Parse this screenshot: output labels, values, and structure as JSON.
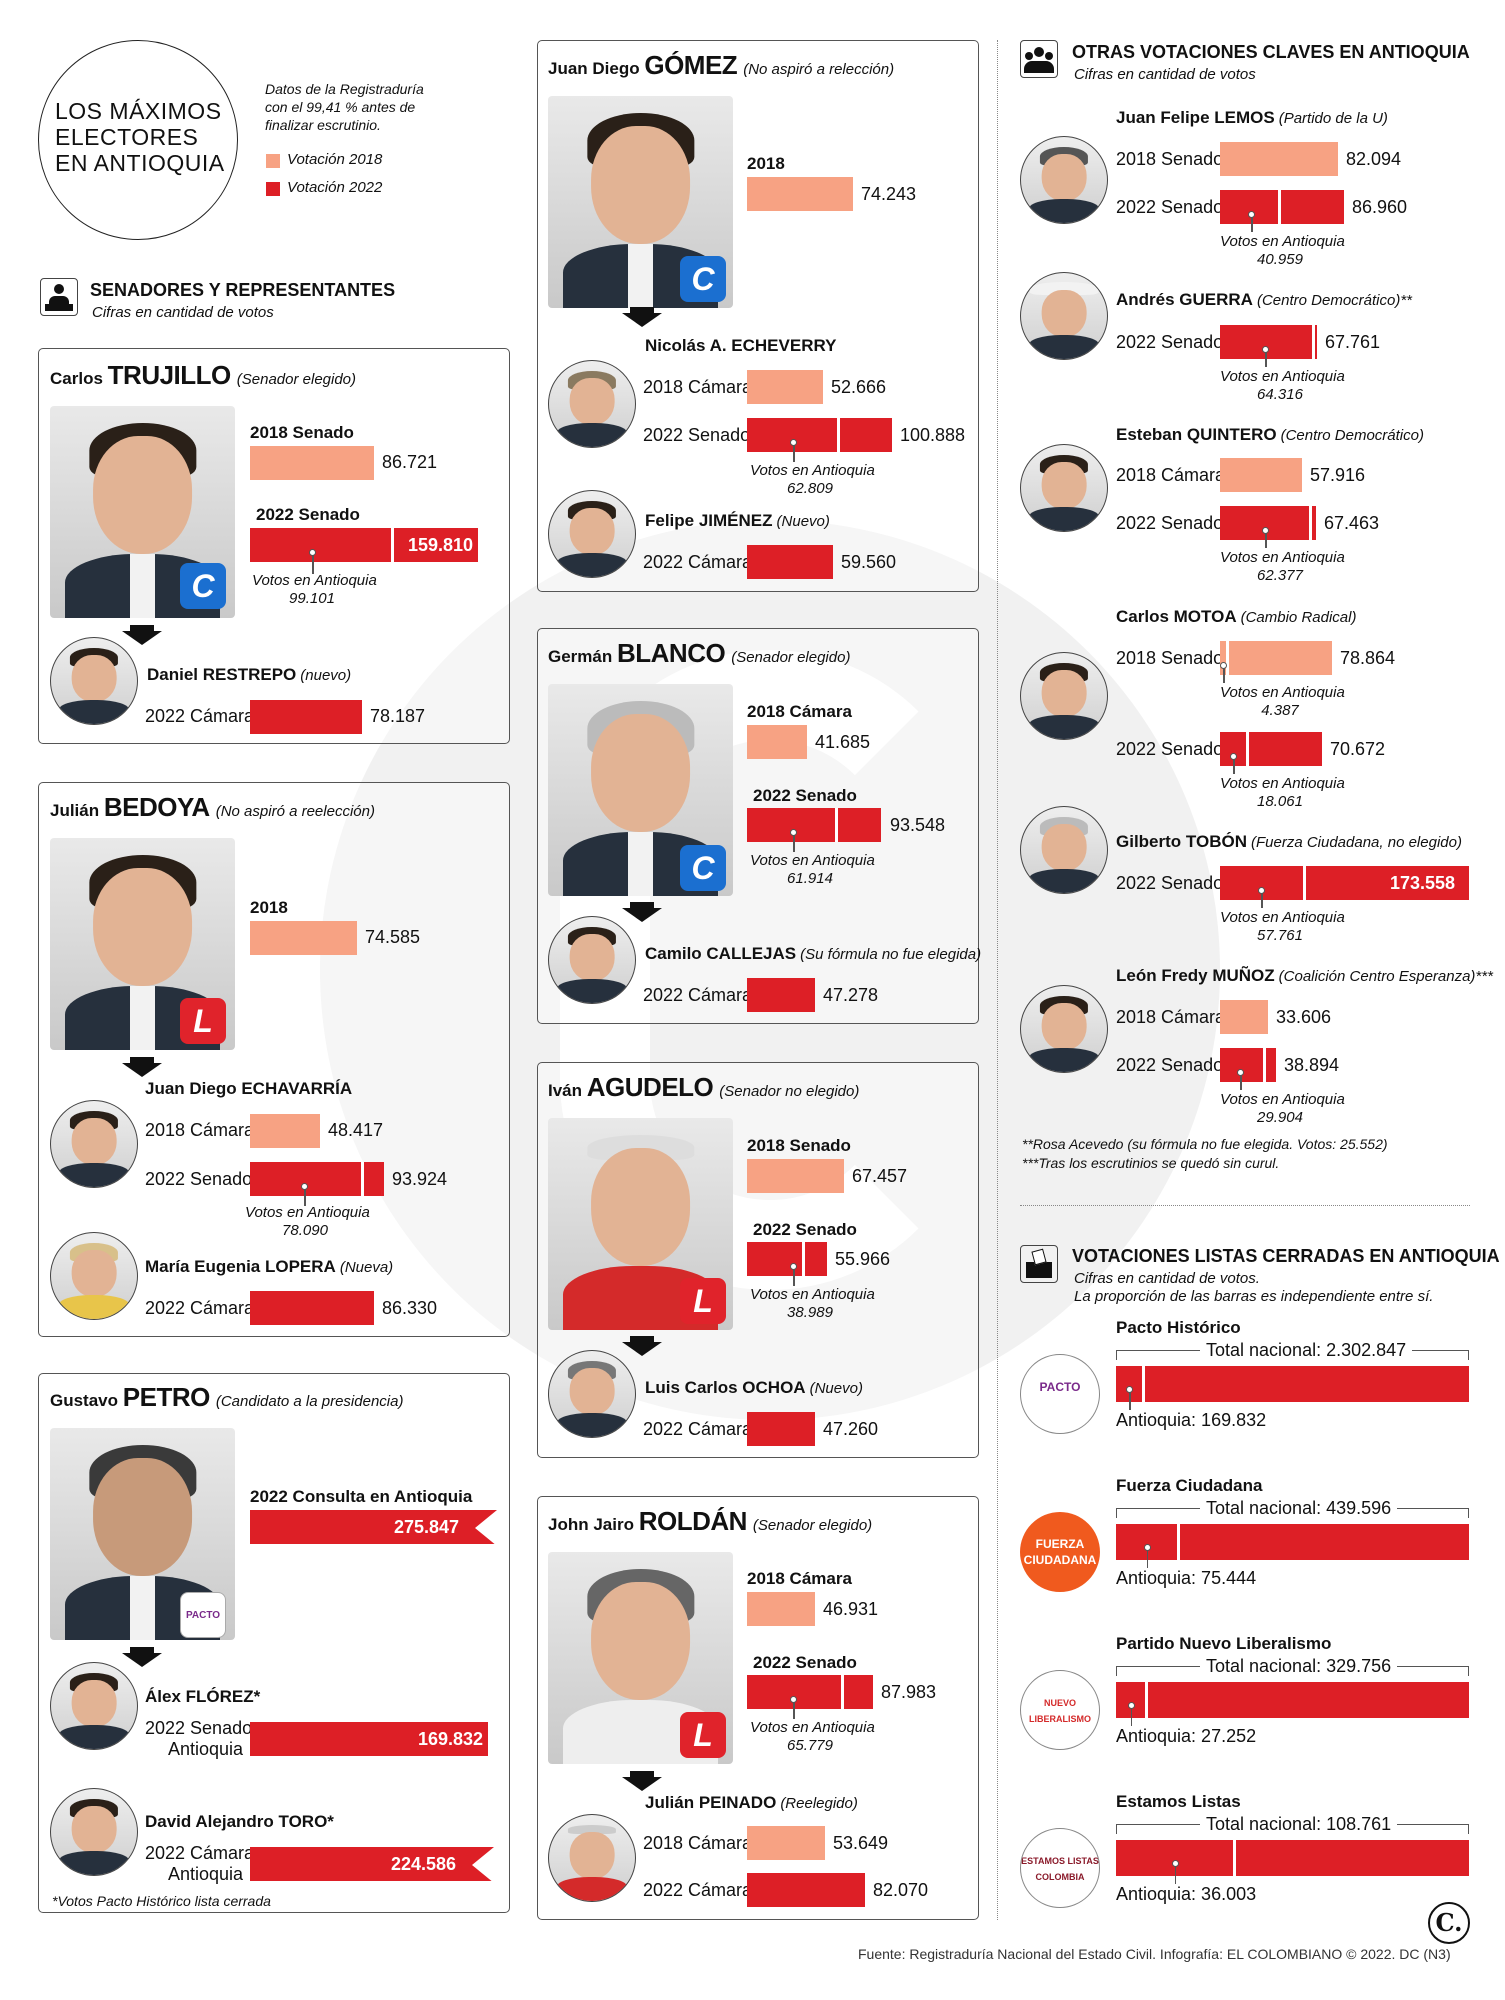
{
  "title": "LOS MÁXIMOS ELECTORES EN ANTIOQUIA",
  "title_lines": [
    "LOS MÁXIMOS",
    "ELECTORES",
    "EN ANTIOQUIA"
  ],
  "intro": [
    "Datos de la Registraduría",
    "con el 99,41 % antes de",
    "finalizar escrutinio."
  ],
  "legend": {
    "y2018": "Votación 2018",
    "y2022": "Votación 2022",
    "color2018": "#f7a283",
    "color2022": "#dd1f26"
  },
  "section_senadores": {
    "title": "SENADORES Y REPRESENTANTES",
    "subtitle": "Cifras en cantidad de votos",
    "icon": "podium-icon"
  },
  "section_otras": {
    "title": "OTRAS VOTACIONES CLAVES EN ANTIOQUIA",
    "subtitle": "Cifras en cantidad de votos",
    "icon": "people-icon"
  },
  "section_listas": {
    "title": "VOTACIONES LISTAS CERRADAS EN ANTIOQUIA",
    "subtitle1": "Cifras en cantidad de votos.",
    "subtitle2": "La proporción de las barras es independiente entre sí.",
    "icon": "ballot-box-icon"
  },
  "votos_ant": "Votos en Antioquia",
  "trujillo": {
    "first": "Carlos",
    "sur": "TRUJILLO",
    "note": "(Senador elegido)",
    "l1": "2018 Senado",
    "v1": "86.721",
    "l2": "2022 Senado",
    "v2": "159.810",
    "ant": "99.101",
    "party": "C",
    "sub": {
      "name": "Daniel RESTREPO",
      "note": "(nuevo)",
      "l1": "2022 Cámara",
      "v1": "78.187"
    }
  },
  "bedoya": {
    "first": "Julián",
    "sur": "BEDOYA",
    "note": "(No aspiró a reelección)",
    "l1": "2018",
    "v1": "74.585",
    "party": "L",
    "sub1": {
      "name": "Juan Diego ECHAVARRÍA",
      "l1": "2018 Cámara",
      "v1": "48.417",
      "l2": "2022 Senado",
      "v2": "93.924",
      "ant": "78.090"
    },
    "sub2": {
      "name": "María Eugenia LOPERA",
      "note": "(Nueva)",
      "l1": "2022 Cámara",
      "v1": "86.330"
    }
  },
  "petro": {
    "first": "Gustavo",
    "sur": "PETRO",
    "note": "(Candidato a la presidencia)",
    "l1": "2022 Consulta en Antioquia",
    "v1": "275.847",
    "party": "PACTO",
    "sub1": {
      "name": "Álex FLÓREZ*",
      "l1a": "2022 Senado",
      "l1b": "Antioquia",
      "v1": "169.832"
    },
    "sub2": {
      "name": "David Alejandro TORO*",
      "l1a": "2022 Cámara",
      "l1b": "Antioquia",
      "v1": "224.586"
    },
    "footnote": "*Votos Pacto Histórico lista cerrada"
  },
  "gomez": {
    "first": "Juan Diego",
    "sur": "GÓMEZ",
    "note": "(No aspiró a relección)",
    "l1": "2018",
    "v1": "74.243",
    "party": "C",
    "sub1": {
      "name": "Nicolás A. ECHEVERRY",
      "l1": "2018 Cámara",
      "v1": "52.666",
      "l2": "2022 Senado",
      "v2": "100.888",
      "ant": "62.809"
    },
    "sub2": {
      "name": "Felipe JIMÉNEZ",
      "note": "(Nuevo)",
      "l1": "2022 Cámara",
      "v1": "59.560"
    }
  },
  "blanco": {
    "first": "Germán",
    "sur": "BLANCO",
    "note": "(Senador elegido)",
    "l1": "2018 Cámara",
    "v1": "41.685",
    "l2": "2022 Senado",
    "v2": "93.548",
    "ant": "61.914",
    "party": "C",
    "sub": {
      "name": "Camilo CALLEJAS",
      "note": "(Su fórmula no fue elegida)",
      "l1": "2022 Cámara",
      "v1": "47.278"
    }
  },
  "agudelo": {
    "first": "Iván",
    "sur": "AGUDELO",
    "note": "(Senador no elegido)",
    "l1": "2018 Senado",
    "v1": "67.457",
    "l2": "2022 Senado",
    "v2": "55.966",
    "ant": "38.989",
    "party": "L",
    "sub": {
      "name": "Luis Carlos OCHOA",
      "note": "(Nuevo)",
      "l1": "2022 Cámara",
      "v1": "47.260"
    }
  },
  "roldan": {
    "first": "John Jairo",
    "sur": "ROLDÁN",
    "note": "(Senador elegido)",
    "l1": "2018 Cámara",
    "v1": "46.931",
    "l2": "2022 Senado",
    "v2": "87.983",
    "ant": "65.779",
    "party": "L",
    "sub": {
      "name": "Julián PEINADO",
      "note": "(Reelegido)",
      "l1": "2018 Cámara",
      "v1": "53.649",
      "l2": "2022 Cámara",
      "v2": "82.070"
    }
  },
  "otras": [
    {
      "name": "Juan Felipe LEMOS",
      "note": "(Partido de la U)",
      "l1": "2018 Senado",
      "v1": "82.094",
      "l2": "2022 Senado",
      "v2": "86.960",
      "ant": "40.959"
    },
    {
      "name": "Andrés GUERRA",
      "note": "(Centro Democrático)**",
      "l2": "2022 Senado",
      "v2": "67.761",
      "ant": "64.316"
    },
    {
      "name": "Esteban QUINTERO",
      "note": "(Centro Democrático)",
      "l1": "2018 Cámara",
      "v1": "57.916",
      "l2": "2022 Senado",
      "v2": "67.463",
      "ant": "62.377"
    },
    {
      "name": "Carlos MOTOA",
      "note": "(Cambio Radical)",
      "l1": "2018 Senado",
      "v1": "78.864",
      "ant1": "4.387",
      "l2": "2022 Senado",
      "v2": "70.672",
      "ant": "18.061"
    },
    {
      "name": "Gilberto TOBÓN",
      "note": "(Fuerza Ciudadana, no elegido)",
      "l2": "2022 Senado",
      "v2": "173.558",
      "ant": "57.761"
    },
    {
      "name": "León Fredy MUÑOZ",
      "note": "(Coalición Centro Esperanza)***",
      "l1": "2018 Cámara",
      "v1": "33.606",
      "l2": "2022 Senado",
      "v2": "38.894",
      "ant": "29.904"
    }
  ],
  "notes": [
    "**Rosa Acevedo (su fórmula no fue elegida. Votos: 25.552)",
    "***Tras los escrutinios se quedó sin curul."
  ],
  "listas": [
    {
      "name": "Pacto Histórico",
      "total": "Total nacional: 2.302.847",
      "ant": "Antioquia: 169.832",
      "total_n": 2302847,
      "ant_n": 169832,
      "logo": "PACTO"
    },
    {
      "name": "Fuerza Ciudadana",
      "total": "Total nacional: 439.596",
      "ant": "Antioquia: 75.444",
      "total_n": 439596,
      "ant_n": 75444,
      "logo": "FUERZA CIUDADANA"
    },
    {
      "name": "Partido Nuevo Liberalismo",
      "total": "Total nacional: 329.756",
      "ant": "Antioquia: 27.252",
      "total_n": 329756,
      "ant_n": 27252,
      "logo": "NUEVO LIBERALISMO"
    },
    {
      "name": "Estamos Listas",
      "total": "Total nacional: 108.761",
      "ant": "Antioquia: 36.003",
      "total_n": 108761,
      "ant_n": 36003,
      "logo": "ESTAMOS LISTAS COLOMBIA"
    }
  ],
  "source": "Fuente: Registraduría Nacional del Estado Civil. Infografía: EL COLOMBIANO © 2022. DC (N3)",
  "brand": "C."
}
